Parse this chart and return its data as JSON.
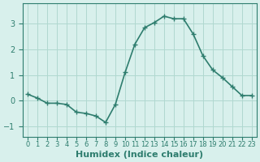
{
  "x": [
    0,
    1,
    2,
    3,
    4,
    5,
    6,
    7,
    8,
    9,
    10,
    11,
    12,
    13,
    14,
    15,
    16,
    17,
    18,
    19,
    20,
    21,
    22,
    23
  ],
  "y": [
    0.25,
    0.1,
    -0.1,
    -0.1,
    -0.15,
    -0.45,
    -0.5,
    -0.6,
    -0.85,
    -0.15,
    1.1,
    2.2,
    2.85,
    3.05,
    3.3,
    3.2,
    3.2,
    2.6,
    1.75,
    1.2,
    0.9,
    0.55,
    0.2,
    0.2
  ],
  "line_color": "#2e7d6e",
  "marker": "+",
  "markersize": 4,
  "linewidth": 1.2,
  "bg_color": "#d8f0ec",
  "grid_color": "#b0d8d0",
  "xlabel": "Humidex (Indice chaleur)",
  "xlabel_fontsize": 8,
  "tick_fontsize": 7,
  "yticks": [
    -1,
    0,
    1,
    2,
    3
  ],
  "ylim": [
    -1.4,
    3.8
  ],
  "xlim": [
    -0.5,
    23.5
  ],
  "xtick_labels": [
    "0",
    "1",
    "2",
    "3",
    "4",
    "5",
    "6",
    "7",
    "8",
    "9",
    "10",
    "11",
    "12",
    "13",
    "14",
    "15",
    "16",
    "17",
    "18",
    "19",
    "20",
    "21",
    "22",
    "23"
  ]
}
